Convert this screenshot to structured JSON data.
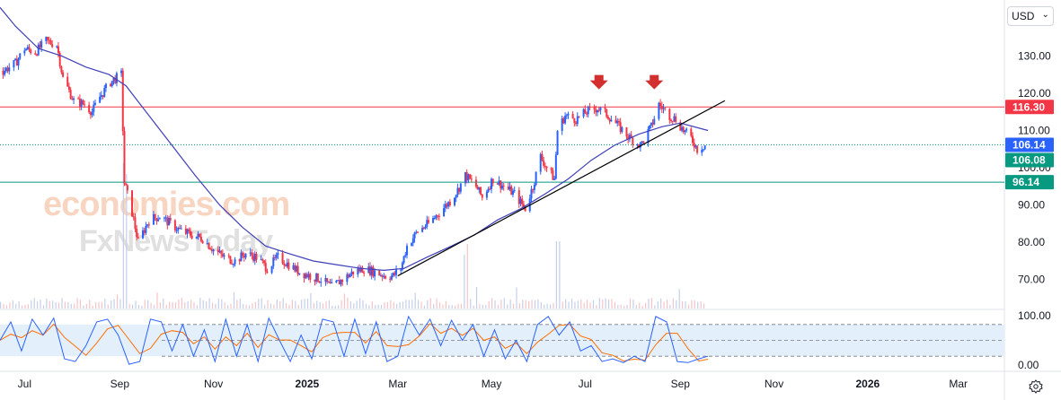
{
  "ui": {
    "currency_label": "USD",
    "currency_chevron": "⌄",
    "settings_icon": "gear-icon",
    "watermark_top": "economies.com",
    "watermark_bottom": "FxNewsToday"
  },
  "colors": {
    "up": "#2962ff",
    "down": "#f23645",
    "ma": "#3f3fb8",
    "trend": "#000000",
    "res_line": "#f23645",
    "sup_line": "#089981",
    "cur_line": "#089981",
    "stoch_k": "#2962ff",
    "stoch_d": "#ff6d00",
    "stoch_band": "#e3f0fb",
    "arrow": "#d32f2f",
    "tag_res": "#f23645",
    "tag_cur1": "#2962ff",
    "tag_cur2": "#089981",
    "tag_sup": "#089981"
  },
  "chart_data": {
    "type": "candlestick",
    "title": "",
    "xlabel": "",
    "ylabel": "",
    "ylim": [
      62,
      145
    ],
    "xlim": [
      "2024-06-15",
      "2026-03-31"
    ],
    "price_axis_ticks": [
      "130.00",
      "120.00",
      "110.00",
      "100.00",
      "90.00",
      "80.00",
      "70.00"
    ],
    "time_axis_ticks": [
      "Jul",
      "Sep",
      "Nov",
      "2025",
      "Mar",
      "May",
      "Jul",
      "Sep",
      "Nov",
      "2026",
      "Mar"
    ],
    "tick_dates": [
      "2024-07-01",
      "2024-09-01",
      "2024-11-01",
      "2025-01-01",
      "2025-03-01",
      "2025-05-01",
      "2025-07-01",
      "2025-09-01",
      "2025-11-01",
      "2026-01-01",
      "2026-03-01"
    ],
    "price_path": [
      [
        "2024-06-17",
        126
      ],
      [
        "2024-06-25",
        128
      ],
      [
        "2024-07-01",
        132
      ],
      [
        "2024-07-08",
        131
      ],
      [
        "2024-07-15",
        134
      ],
      [
        "2024-07-22",
        133
      ],
      [
        "2024-07-26",
        124
      ],
      [
        "2024-08-02",
        118
      ],
      [
        "2024-08-09",
        117
      ],
      [
        "2024-08-14",
        115
      ],
      [
        "2024-08-19",
        119
      ],
      [
        "2024-08-26",
        123
      ],
      [
        "2024-09-02",
        125
      ],
      [
        "2024-09-04",
        96
      ],
      [
        "2024-09-09",
        88
      ],
      [
        "2024-09-13",
        80
      ],
      [
        "2024-09-20",
        86
      ],
      [
        "2024-09-27",
        87
      ],
      [
        "2024-10-04",
        85
      ],
      [
        "2024-10-11",
        83
      ],
      [
        "2024-10-18",
        82
      ],
      [
        "2024-10-25",
        81
      ],
      [
        "2024-11-01",
        78
      ],
      [
        "2024-11-08",
        76
      ],
      [
        "2024-11-15",
        75
      ],
      [
        "2024-11-22",
        77
      ],
      [
        "2024-11-29",
        76
      ],
      [
        "2024-12-06",
        73
      ],
      [
        "2024-12-13",
        76
      ],
      [
        "2024-12-20",
        74
      ],
      [
        "2024-12-27",
        72
      ],
      [
        "2025-01-03",
        71
      ],
      [
        "2025-01-10",
        70
      ],
      [
        "2025-01-17",
        68
      ],
      [
        "2025-01-24",
        70
      ],
      [
        "2025-01-31",
        72
      ],
      [
        "2025-02-07",
        73
      ],
      [
        "2025-02-14",
        72
      ],
      [
        "2025-02-21",
        71
      ],
      [
        "2025-02-26",
        71
      ],
      [
        "2025-03-03",
        73
      ],
      [
        "2025-03-07",
        79
      ],
      [
        "2025-03-14",
        83
      ],
      [
        "2025-03-21",
        85
      ],
      [
        "2025-03-28",
        88
      ],
      [
        "2025-04-04",
        91
      ],
      [
        "2025-04-09",
        94
      ],
      [
        "2025-04-14",
        98
      ],
      [
        "2025-04-21",
        95
      ],
      [
        "2025-04-25",
        92
      ],
      [
        "2025-05-02",
        97
      ],
      [
        "2025-05-09",
        95
      ],
      [
        "2025-05-16",
        93
      ],
      [
        "2025-05-23",
        89
      ],
      [
        "2025-05-28",
        95
      ],
      [
        "2025-06-02",
        103
      ],
      [
        "2025-06-06",
        100
      ],
      [
        "2025-06-11",
        97
      ],
      [
        "2025-06-13",
        110
      ],
      [
        "2025-06-18",
        114
      ],
      [
        "2025-06-25",
        113
      ],
      [
        "2025-07-02",
        115
      ],
      [
        "2025-07-09",
        116
      ],
      [
        "2025-07-16",
        114
      ],
      [
        "2025-07-23",
        111
      ],
      [
        "2025-07-30",
        108
      ],
      [
        "2025-08-06",
        106
      ],
      [
        "2025-08-13",
        111
      ],
      [
        "2025-08-18",
        117
      ],
      [
        "2025-08-25",
        114
      ],
      [
        "2025-08-29",
        113
      ],
      [
        "2025-09-03",
        110
      ],
      [
        "2025-09-08",
        108
      ],
      [
        "2025-09-12",
        105
      ],
      [
        "2025-09-17",
        106.1
      ]
    ],
    "moving_average": [
      [
        "2024-06-15",
        143
      ],
      [
        "2024-06-25",
        138
      ],
      [
        "2024-07-10",
        132
      ],
      [
        "2024-07-25",
        130
      ],
      [
        "2024-08-10",
        127
      ],
      [
        "2024-08-25",
        125
      ],
      [
        "2024-09-05",
        122
      ],
      [
        "2024-09-20",
        114
      ],
      [
        "2024-10-05",
        106
      ],
      [
        "2024-10-20",
        98
      ],
      [
        "2024-11-05",
        90
      ],
      [
        "2024-11-20",
        84
      ],
      [
        "2024-12-05",
        79
      ],
      [
        "2024-12-20",
        77
      ],
      [
        "2025-01-05",
        75
      ],
      [
        "2025-01-20",
        74
      ],
      [
        "2025-02-05",
        73
      ],
      [
        "2025-02-20",
        72.5
      ],
      [
        "2025-03-05",
        73
      ],
      [
        "2025-03-20",
        76
      ],
      [
        "2025-04-05",
        79
      ],
      [
        "2025-04-20",
        82
      ],
      [
        "2025-05-05",
        86
      ],
      [
        "2025-05-20",
        89
      ],
      [
        "2025-06-05",
        93
      ],
      [
        "2025-06-20",
        97
      ],
      [
        "2025-07-05",
        102
      ],
      [
        "2025-07-20",
        106
      ],
      [
        "2025-08-05",
        109
      ],
      [
        "2025-08-20",
        111
      ],
      [
        "2025-09-01",
        112
      ],
      [
        "2025-09-19",
        110
      ]
    ],
    "trendline": {
      "start": [
        "2025-03-01",
        71
      ],
      "end": [
        "2025-09-30",
        118
      ]
    },
    "horizontal_levels": [
      {
        "value": 116.3,
        "label": "116.30",
        "style": "solid",
        "color_key": "res_line",
        "tag_key": "tag_res"
      },
      {
        "value": 106.14,
        "label": "106.14",
        "style": "dotted",
        "color_key": "cur_line",
        "tag_key": "tag_cur1"
      },
      {
        "value": 96.14,
        "label": "96.14",
        "style": "solid",
        "color_key": "sup_line",
        "tag_key": "tag_sup"
      }
    ],
    "current_price_second_tag": {
      "value": 106.08,
      "label": "106.08"
    },
    "arrows": [
      [
        "2025-07-10",
        122
      ],
      [
        "2025-08-15",
        122
      ]
    ],
    "volume_axis_max": 100,
    "volume_spikes": [
      [
        "2024-09-04",
        1.0
      ],
      [
        "2025-06-13",
        0.5
      ],
      [
        "2025-04-14",
        0.4
      ]
    ],
    "oscillator": {
      "type": "stochastic",
      "ylim": [
        0,
        100
      ],
      "axis_ticks": [
        "100.00",
        "0.00"
      ],
      "bands": [
        80,
        50,
        20
      ],
      "k": [
        [
          "2024-06-15",
          50
        ],
        [
          "2024-06-22",
          85
        ],
        [
          "2024-06-29",
          30
        ],
        [
          "2024-07-06",
          90
        ],
        [
          "2024-07-13",
          60
        ],
        [
          "2024-07-20",
          92
        ],
        [
          "2024-07-27",
          15
        ],
        [
          "2024-08-03",
          10
        ],
        [
          "2024-08-10",
          40
        ],
        [
          "2024-08-17",
          85
        ],
        [
          "2024-08-24",
          90
        ],
        [
          "2024-08-31",
          60
        ],
        [
          "2024-09-07",
          5
        ],
        [
          "2024-09-14",
          10
        ],
        [
          "2024-09-21",
          90
        ],
        [
          "2024-09-28",
          85
        ],
        [
          "2024-10-05",
          30
        ],
        [
          "2024-10-12",
          80
        ],
        [
          "2024-10-19",
          20
        ],
        [
          "2024-10-26",
          70
        ],
        [
          "2024-11-02",
          10
        ],
        [
          "2024-11-09",
          90
        ],
        [
          "2024-11-16",
          20
        ],
        [
          "2024-11-23",
          80
        ],
        [
          "2024-11-30",
          10
        ],
        [
          "2024-12-07",
          92
        ],
        [
          "2024-12-14",
          50
        ],
        [
          "2024-12-21",
          10
        ],
        [
          "2024-12-28",
          60
        ],
        [
          "2025-01-04",
          15
        ],
        [
          "2025-01-11",
          90
        ],
        [
          "2025-01-18",
          85
        ],
        [
          "2025-01-25",
          20
        ],
        [
          "2025-02-01",
          90
        ],
        [
          "2025-02-08",
          25
        ],
        [
          "2025-02-15",
          85
        ],
        [
          "2025-02-22",
          10
        ],
        [
          "2025-03-01",
          20
        ],
        [
          "2025-03-08",
          95
        ],
        [
          "2025-03-15",
          60
        ],
        [
          "2025-03-22",
          90
        ],
        [
          "2025-03-29",
          40
        ],
        [
          "2025-04-05",
          88
        ],
        [
          "2025-04-12",
          50
        ],
        [
          "2025-04-19",
          80
        ],
        [
          "2025-04-26",
          20
        ],
        [
          "2025-05-03",
          70
        ],
        [
          "2025-05-10",
          15
        ],
        [
          "2025-05-17",
          50
        ],
        [
          "2025-05-24",
          10
        ],
        [
          "2025-05-31",
          80
        ],
        [
          "2025-06-07",
          95
        ],
        [
          "2025-06-14",
          60
        ],
        [
          "2025-06-21",
          85
        ],
        [
          "2025-06-28",
          30
        ],
        [
          "2025-07-05",
          40
        ],
        [
          "2025-07-12",
          10
        ],
        [
          "2025-07-19",
          15
        ],
        [
          "2025-07-26",
          8
        ],
        [
          "2025-08-02",
          20
        ],
        [
          "2025-08-09",
          10
        ],
        [
          "2025-08-16",
          95
        ],
        [
          "2025-08-23",
          85
        ],
        [
          "2025-08-30",
          10
        ],
        [
          "2025-09-06",
          8
        ],
        [
          "2025-09-13",
          15
        ],
        [
          "2025-09-19",
          20
        ]
      ]
    }
  }
}
